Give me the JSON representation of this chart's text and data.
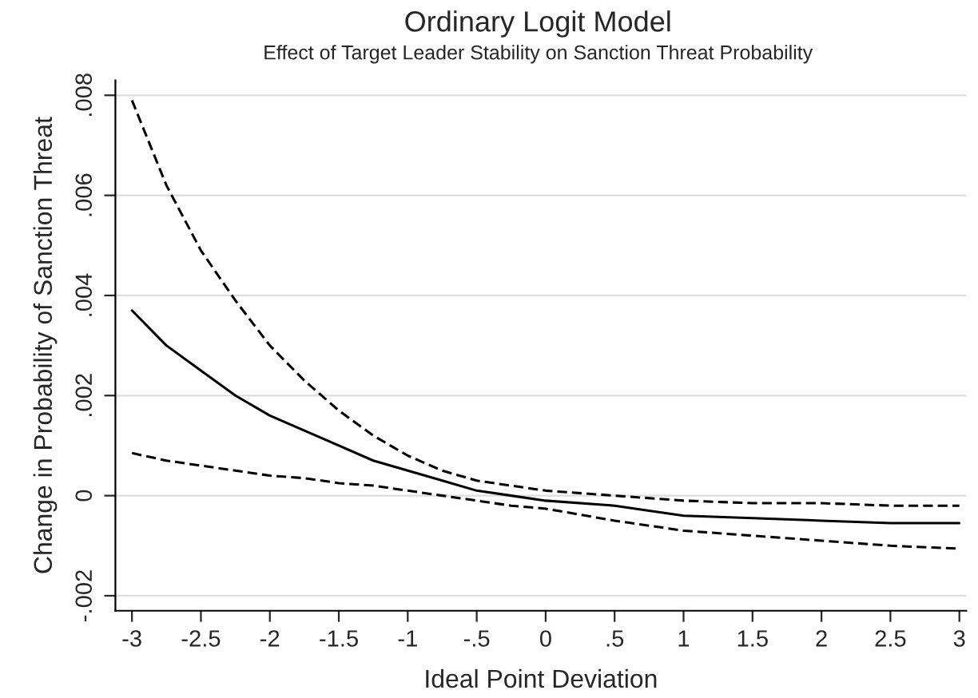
{
  "chart_data": {
    "type": "line",
    "title": "Ordinary Logit Model",
    "subtitle": "Effect of Target Leader Stability on Sanction Threat Probability",
    "xlabel": "Ideal Point Deviation",
    "ylabel": "Change in Probability of Sanction Threat",
    "x": [
      -3,
      -2.75,
      -2.5,
      -2.25,
      -2,
      -1.75,
      -1.5,
      -1.25,
      -1,
      -0.75,
      -0.5,
      -0.25,
      0,
      0.5,
      1,
      1.5,
      2,
      2.5,
      3
    ],
    "series": [
      {
        "color": "#000000",
        "line_style": "solid",
        "values": [
          0.0037,
          0.003,
          0.0025,
          0.002,
          0.0016,
          0.0013,
          0.001,
          0.0007,
          0.0005,
          0.0003,
          0.0001,
          0.0,
          -0.0001,
          -0.0002,
          -0.0004,
          -0.00045,
          -0.0005,
          -0.00055,
          -0.00055
        ]
      },
      {
        "color": "#000000",
        "line_style": "dashed",
        "values": [
          0.0079,
          0.0062,
          0.0049,
          0.0039,
          0.003,
          0.0023,
          0.0017,
          0.0012,
          0.0008,
          0.0005,
          0.0003,
          0.0002,
          0.0001,
          0.0,
          -0.0001,
          -0.00015,
          -0.00015,
          -0.0002,
          -0.0002
        ]
      },
      {
        "color": "#000000",
        "line_style": "dashed",
        "values": [
          0.00085,
          0.0007,
          0.0006,
          0.0005,
          0.0004,
          0.00035,
          0.00025,
          0.0002,
          0.0001,
          0.0,
          -0.0001,
          -0.0002,
          -0.00026,
          -0.0005,
          -0.0007,
          -0.0008,
          -0.0009,
          -0.001,
          -0.00106
        ]
      }
    ],
    "xlim": [
      -3.12,
      3.05
    ],
    "ylim": [
      -0.0023,
      0.0083
    ],
    "xticks": [
      -3,
      {
        "value": -2.5,
        "label": "-2.5"
      },
      -2,
      {
        "value": -1.5,
        "label": "-1.5"
      },
      -1,
      {
        "value": -0.5,
        "label": "-.5"
      },
      0,
      {
        "value": 0.5,
        "label": ".5"
      },
      1,
      1.5,
      2,
      2.5,
      3
    ],
    "yticks": [
      {
        "value": -0.002,
        "label": "-.002"
      },
      0,
      {
        "value": 0.002,
        "label": ".002"
      },
      {
        "value": 0.004,
        "label": ".004"
      },
      {
        "value": 0.006,
        "label": ".006"
      },
      {
        "value": 0.008,
        "label": ".008"
      }
    ],
    "grid": "y",
    "legend": false,
    "marker": "none"
  }
}
